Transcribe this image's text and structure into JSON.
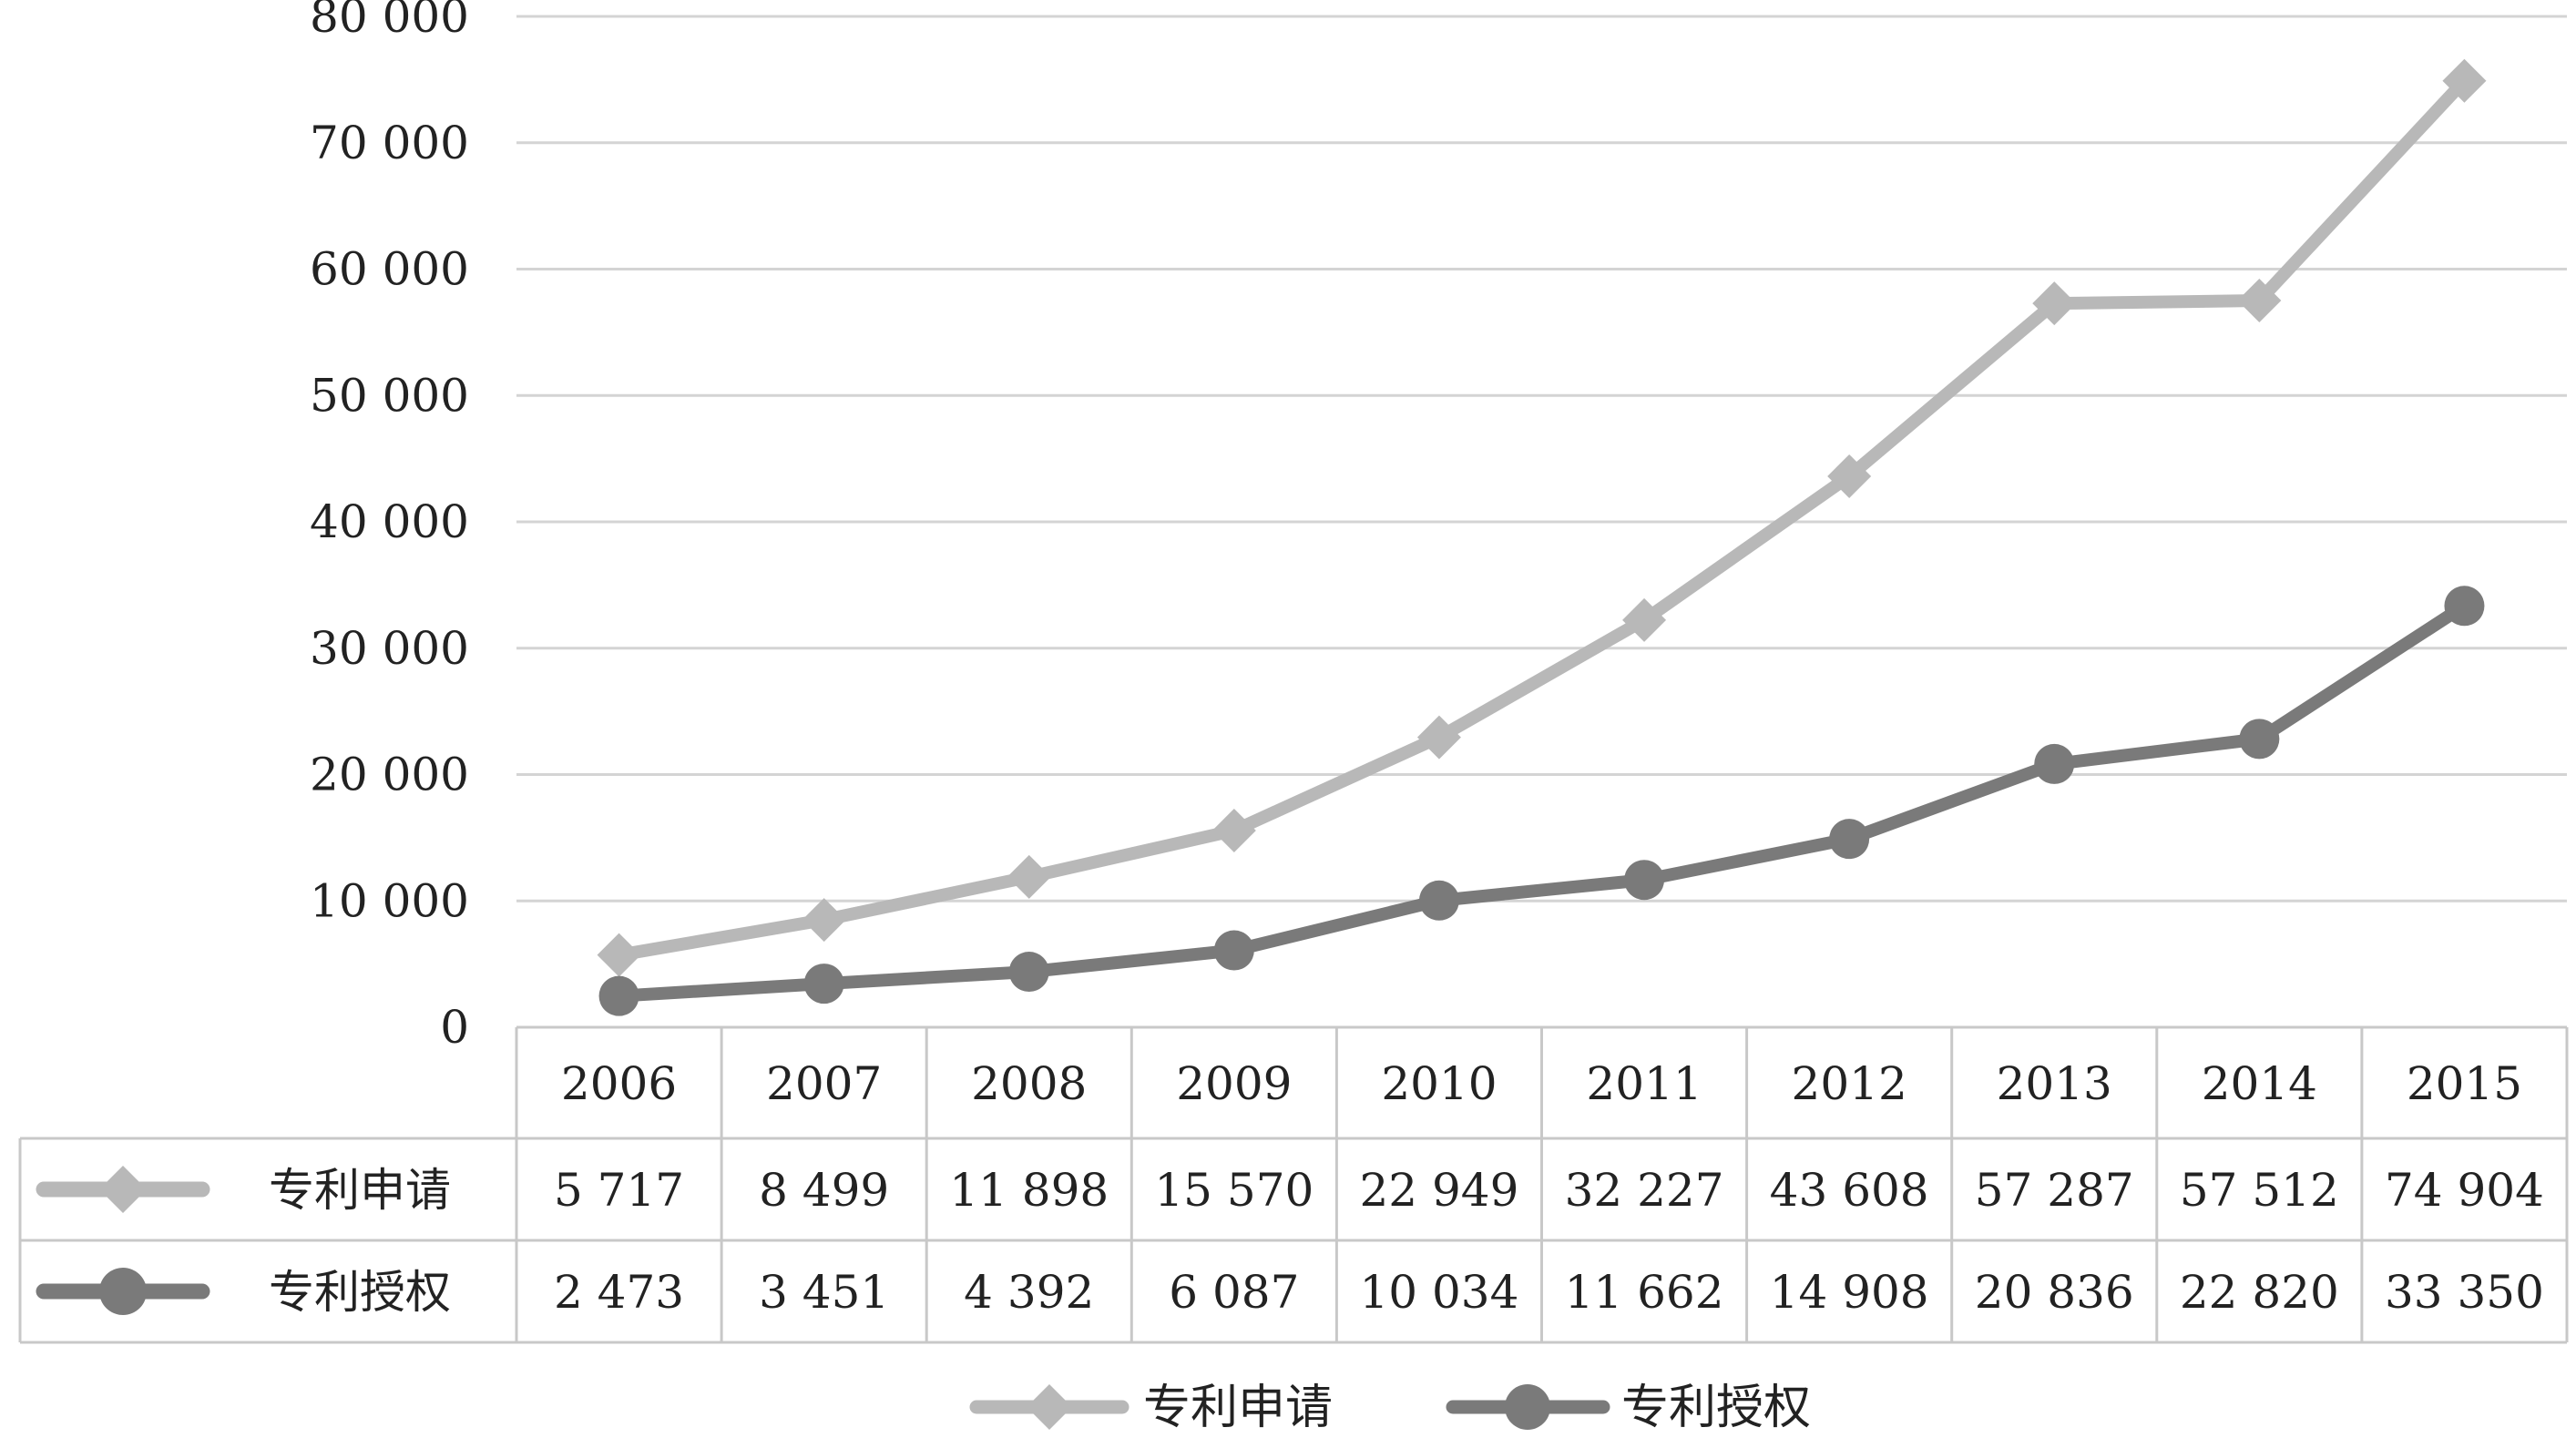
{
  "chart_data": {
    "type": "line",
    "x": [
      "2006",
      "2007",
      "2008",
      "2009",
      "2010",
      "2011",
      "2012",
      "2013",
      "2014",
      "2015"
    ],
    "ylim": [
      0,
      80000
    ],
    "yticks": [
      0,
      10000,
      20000,
      30000,
      40000,
      50000,
      60000,
      70000,
      80000
    ],
    "ytick_labels": [
      "0",
      "10 000",
      "20 000",
      "30 000",
      "40 000",
      "50 000",
      "60 000",
      "70 000",
      "80 000"
    ],
    "grid": true,
    "legend_position": "bottom",
    "data_table": true,
    "series": [
      {
        "name": "专利申请",
        "marker": "diamond",
        "color": "#b8b8b8",
        "values": [
          5717,
          8499,
          11898,
          15570,
          22949,
          32227,
          43608,
          57287,
          57512,
          74904
        ],
        "value_labels": [
          "5 717",
          "8 499",
          "11 898",
          "15 570",
          "22 949",
          "32 227",
          "43 608",
          "57 287",
          "57 512",
          "74 904"
        ]
      },
      {
        "name": "专利授权",
        "marker": "circle",
        "color": "#7a7a7a",
        "values": [
          2473,
          3451,
          4392,
          6087,
          10034,
          11662,
          14908,
          20836,
          22820,
          33350
        ],
        "value_labels": [
          "2 473",
          "3 451",
          "4 392",
          "6 087",
          "10 034",
          "11 662",
          "14 908",
          "20 836",
          "22 820",
          "33 350"
        ]
      }
    ]
  }
}
